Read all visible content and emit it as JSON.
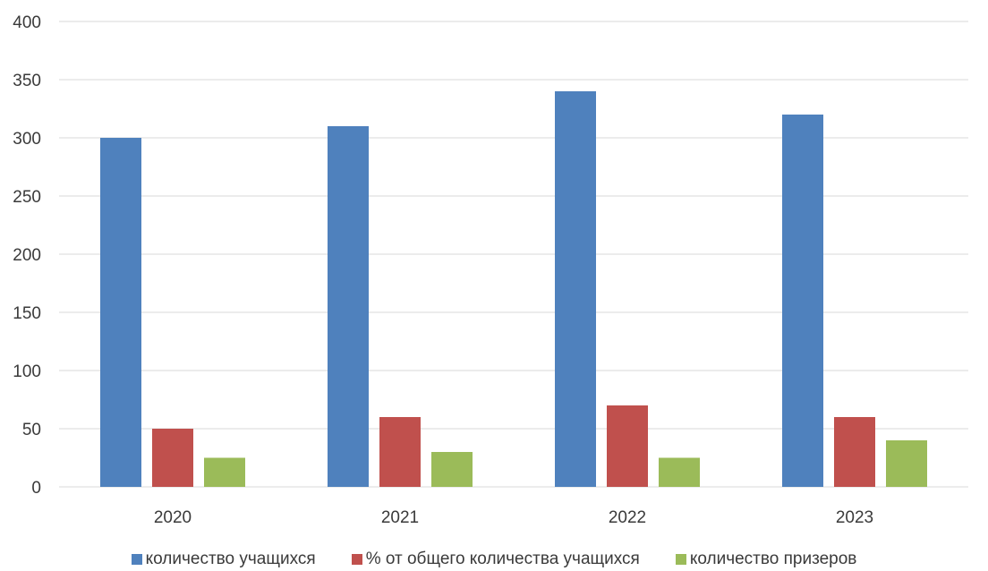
{
  "chart_data": {
    "type": "bar",
    "categories": [
      "2020",
      "2021",
      "2022",
      "2023"
    ],
    "series": [
      {
        "name": "количество учащихся",
        "values": [
          300,
          310,
          340,
          320
        ],
        "color": "#4F81BD"
      },
      {
        "name": "% от общего количества учащихся",
        "values": [
          50,
          60,
          70,
          60
        ],
        "color": "#C0504D"
      },
      {
        "name": "количество призеров",
        "values": [
          25,
          30,
          25,
          40
        ],
        "color": "#9BBB59"
      }
    ],
    "yticks": [
      "0",
      "50",
      "100",
      "150",
      "200",
      "250",
      "300",
      "350",
      "400"
    ],
    "ylim": [
      0,
      400
    ],
    "grid": true,
    "legend_position": "bottom"
  }
}
